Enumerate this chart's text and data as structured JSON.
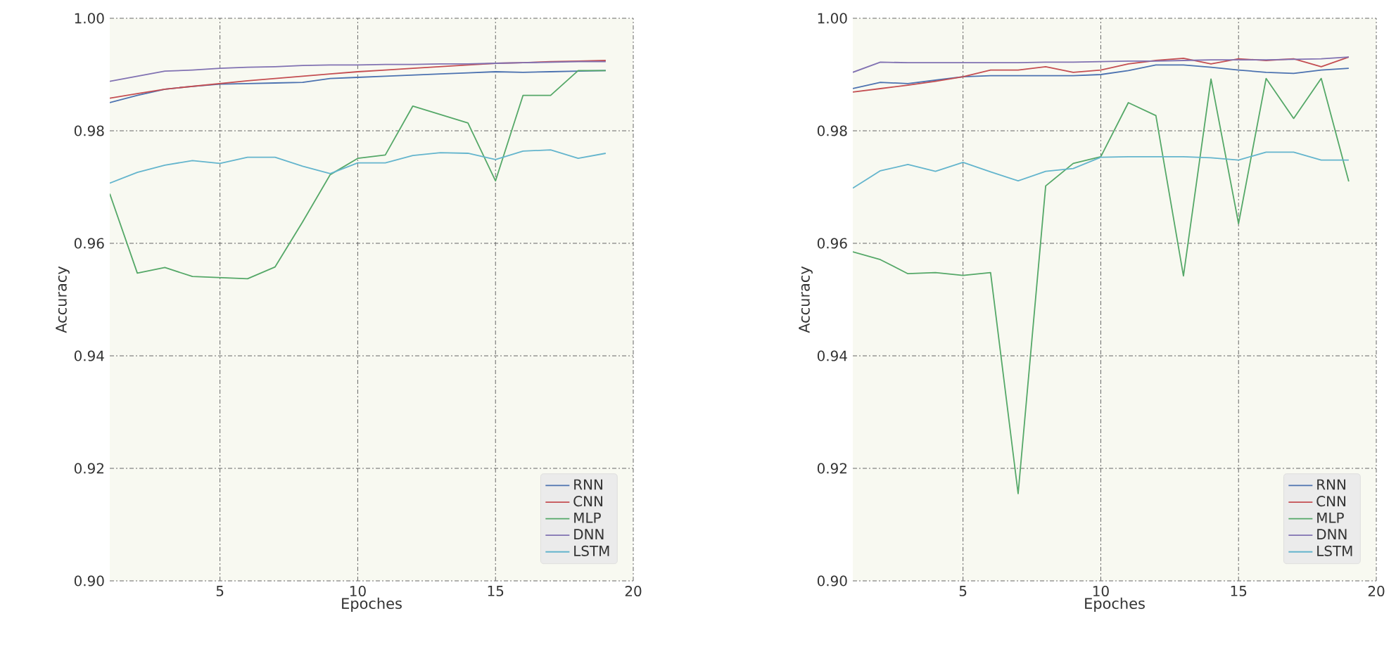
{
  "chart_data": [
    {
      "type": "line",
      "xlabel": "Epoches",
      "ylabel": "Accuracy",
      "x": [
        1,
        2,
        3,
        4,
        5,
        6,
        7,
        8,
        9,
        10,
        11,
        12,
        13,
        14,
        15,
        16,
        17,
        18,
        19
      ],
      "xlim": [
        1,
        20
      ],
      "xticks": [
        5,
        10,
        15,
        20
      ],
      "ylim": [
        0.9,
        1.0
      ],
      "yticks": [
        {
          "value": 0.9,
          "label": "0.90"
        },
        {
          "value": 0.92,
          "label": "0.92"
        },
        {
          "value": 0.94,
          "label": "0.94"
        },
        {
          "value": 0.96,
          "label": "0.96"
        },
        {
          "value": 0.98,
          "label": "0.98"
        },
        {
          "value": 1.0,
          "label": "1.00"
        }
      ],
      "grid": true,
      "legend": "bottom right",
      "series": [
        {
          "name": "RNN",
          "color": "#4c72b0",
          "values": [
            0.985,
            0.9863,
            0.9874,
            0.9879,
            0.9883,
            0.9884,
            0.9885,
            0.9886,
            0.9893,
            0.9895,
            0.9897,
            0.9899,
            0.9901,
            0.9903,
            0.9905,
            0.9904,
            0.9905,
            0.9906,
            0.9907
          ]
        },
        {
          "name": "CNN",
          "color": "#c44e52",
          "values": [
            0.9858,
            0.9866,
            0.9874,
            0.9879,
            0.9884,
            0.9889,
            0.9893,
            0.9897,
            0.9901,
            0.9905,
            0.9908,
            0.9911,
            0.9914,
            0.9917,
            0.992,
            0.9921,
            0.9923,
            0.9924,
            0.9925
          ]
        },
        {
          "name": "MLP",
          "color": "#55a868",
          "values": [
            0.9688,
            0.9547,
            0.9557,
            0.9541,
            0.9539,
            0.9537,
            0.9558,
            0.9638,
            0.9722,
            0.9751,
            0.9757,
            0.9844,
            0.9829,
            0.9814,
            0.9711,
            0.9863,
            0.9863,
            0.9907,
            0.9907
          ]
        },
        {
          "name": "DNN",
          "color": "#8172b2",
          "values": [
            0.9888,
            0.9897,
            0.9906,
            0.9908,
            0.9911,
            0.9913,
            0.9914,
            0.9916,
            0.9917,
            0.9917,
            0.9918,
            0.9918,
            0.9919,
            0.9919,
            0.992,
            0.9921,
            0.9922,
            0.9923,
            0.9923
          ]
        },
        {
          "name": "LSTM",
          "color": "#64b5cd",
          "values": [
            0.9707,
            0.9726,
            0.9739,
            0.9747,
            0.9742,
            0.9753,
            0.9753,
            0.9737,
            0.9724,
            0.9743,
            0.9743,
            0.9756,
            0.9761,
            0.976,
            0.9749,
            0.9764,
            0.9766,
            0.9751,
            0.976
          ]
        }
      ]
    },
    {
      "type": "line",
      "xlabel": "Epoches",
      "ylabel": "Accuracy",
      "x": [
        1,
        2,
        3,
        4,
        5,
        6,
        7,
        8,
        9,
        10,
        11,
        12,
        13,
        14,
        15,
        16,
        17,
        18,
        19
      ],
      "xlim": [
        1,
        20
      ],
      "xticks": [
        5,
        10,
        15,
        20
      ],
      "ylim": [
        0.9,
        1.0
      ],
      "yticks": [
        {
          "value": 0.9,
          "label": "0.90"
        },
        {
          "value": 0.92,
          "label": "0.92"
        },
        {
          "value": 0.94,
          "label": "0.94"
        },
        {
          "value": 0.96,
          "label": "0.96"
        },
        {
          "value": 0.98,
          "label": "0.98"
        },
        {
          "value": 1.0,
          "label": "1.00"
        }
      ],
      "grid": true,
      "legend": "bottom right",
      "series": [
        {
          "name": "RNN",
          "color": "#4c72b0",
          "values": [
            0.9875,
            0.9886,
            0.9884,
            0.989,
            0.9896,
            0.9898,
            0.9898,
            0.9898,
            0.9898,
            0.99,
            0.9907,
            0.9917,
            0.9917,
            0.9913,
            0.9908,
            0.9904,
            0.9902,
            0.9908,
            0.9911
          ]
        },
        {
          "name": "CNN",
          "color": "#c44e52",
          "values": [
            0.9869,
            0.9875,
            0.9881,
            0.9888,
            0.9896,
            0.9908,
            0.9908,
            0.9914,
            0.9904,
            0.9908,
            0.9919,
            0.9925,
            0.9929,
            0.9919,
            0.9928,
            0.9925,
            0.9928,
            0.9914,
            0.9931
          ]
        },
        {
          "name": "MLP",
          "color": "#55a868",
          "values": [
            0.9585,
            0.9571,
            0.9546,
            0.9548,
            0.9543,
            0.9548,
            0.9155,
            0.9702,
            0.9742,
            0.9754,
            0.985,
            0.9827,
            0.9542,
            0.9892,
            0.9635,
            0.9893,
            0.9822,
            0.9893,
            0.971
          ]
        },
        {
          "name": "DNN",
          "color": "#8172b2",
          "values": [
            0.9904,
            0.9922,
            0.9921,
            0.9921,
            0.9921,
            0.9921,
            0.9921,
            0.9922,
            0.9922,
            0.9923,
            0.9924,
            0.9924,
            0.9925,
            0.9926,
            0.9926,
            0.9926,
            0.9927,
            0.9928,
            0.9931
          ]
        },
        {
          "name": "LSTM",
          "color": "#64b5cd",
          "values": [
            0.9698,
            0.9729,
            0.974,
            0.9728,
            0.9744,
            0.9727,
            0.9711,
            0.9728,
            0.9733,
            0.9753,
            0.9754,
            0.9754,
            0.9754,
            0.9752,
            0.9748,
            0.9762,
            0.9762,
            0.9748,
            0.9748
          ]
        }
      ]
    }
  ]
}
